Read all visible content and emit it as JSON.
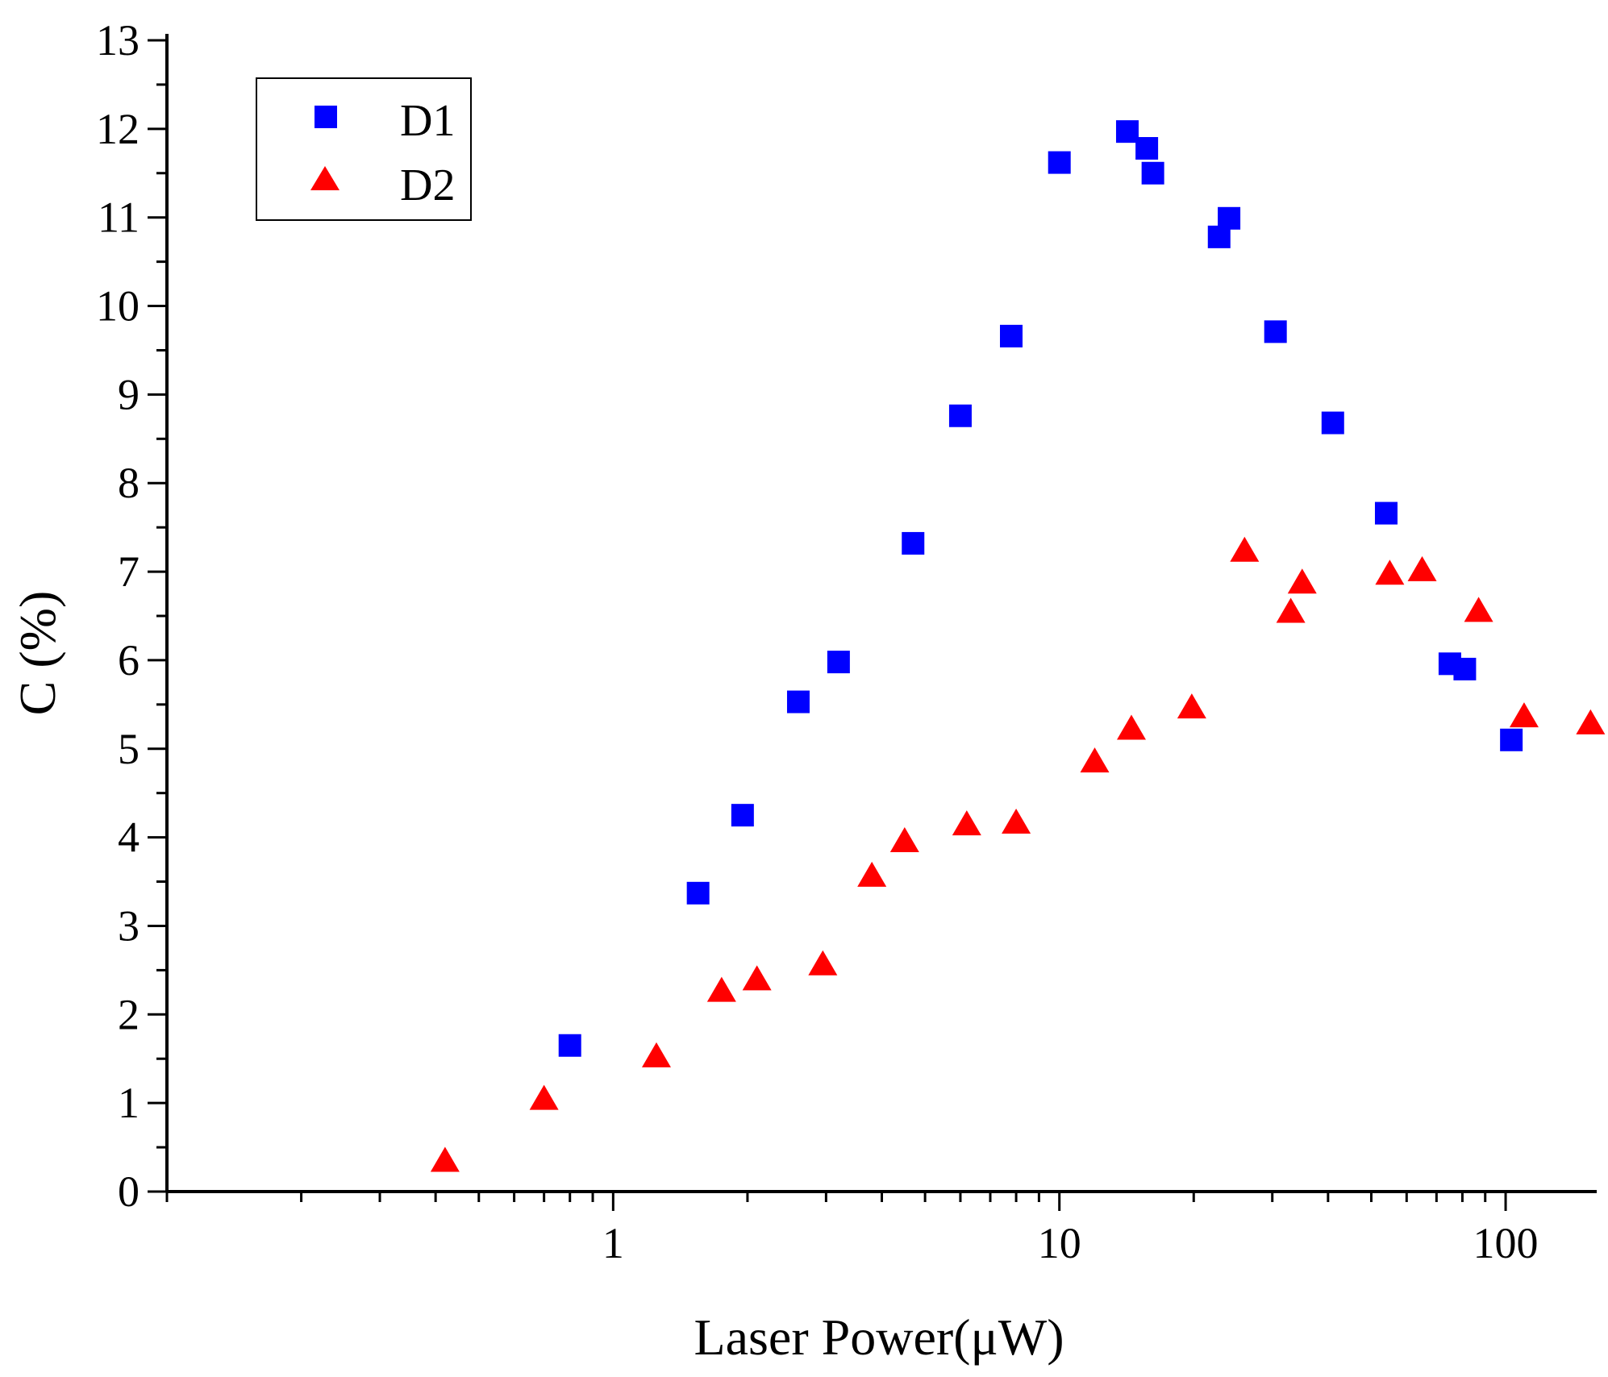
{
  "chart_data": {
    "type": "scatter",
    "xlabel": "Laser Power(μW)",
    "ylabel": "C (%)",
    "xscale": "log",
    "xlim": [
      0.1,
      160
    ],
    "ylim": [
      0,
      13
    ],
    "xticks": [
      {
        "value": 1,
        "label": "1"
      },
      {
        "value": 10,
        "label": "10"
      },
      {
        "value": 100,
        "label": "100"
      }
    ],
    "yticks": [
      0,
      1,
      2,
      3,
      4,
      5,
      6,
      7,
      8,
      9,
      10,
      11,
      12,
      13
    ],
    "legend_position": "top-left",
    "grid": false,
    "series": [
      {
        "name": "D1",
        "marker": "square",
        "color": "#0000FF",
        "points": [
          [
            0.8,
            1.65
          ],
          [
            1.55,
            3.37
          ],
          [
            1.95,
            4.25
          ],
          [
            2.6,
            5.53
          ],
          [
            3.2,
            5.98
          ],
          [
            4.7,
            7.32
          ],
          [
            6.0,
            8.76
          ],
          [
            7.8,
            9.66
          ],
          [
            10.0,
            11.62
          ],
          [
            14.2,
            11.97
          ],
          [
            15.7,
            11.78
          ],
          [
            16.2,
            11.5
          ],
          [
            22.8,
            10.78
          ],
          [
            24.0,
            10.99
          ],
          [
            30.5,
            9.71
          ],
          [
            41.0,
            8.68
          ],
          [
            54.0,
            7.66
          ],
          [
            75.0,
            5.96
          ],
          [
            81.0,
            5.9
          ],
          [
            103.0,
            5.1
          ]
        ]
      },
      {
        "name": "D2",
        "marker": "triangle",
        "color": "#FF0000",
        "points": [
          [
            0.42,
            0.35
          ],
          [
            0.7,
            1.05
          ],
          [
            1.25,
            1.53
          ],
          [
            1.75,
            2.27
          ],
          [
            2.1,
            2.4
          ],
          [
            2.95,
            2.57
          ],
          [
            3.8,
            3.57
          ],
          [
            4.5,
            3.96
          ],
          [
            6.2,
            4.15
          ],
          [
            8.0,
            4.17
          ],
          [
            12.0,
            4.86
          ],
          [
            14.5,
            5.23
          ],
          [
            19.8,
            5.47
          ],
          [
            26.0,
            7.24
          ],
          [
            33.0,
            6.55
          ],
          [
            35.0,
            6.88
          ],
          [
            55.0,
            6.98
          ],
          [
            65.0,
            7.02
          ],
          [
            87.0,
            6.56
          ],
          [
            110.0,
            5.37
          ],
          [
            155.0,
            5.29
          ]
        ]
      }
    ]
  }
}
